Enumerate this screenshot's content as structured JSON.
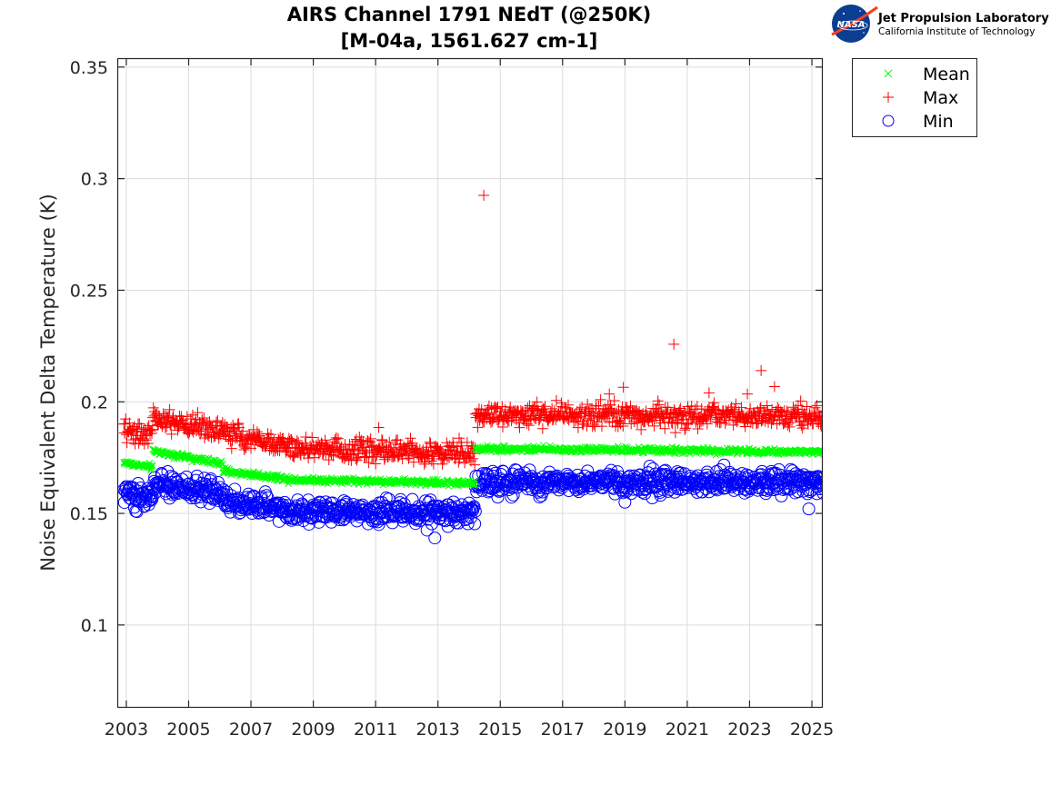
{
  "logo": {
    "org": "Jet Propulsion Laboratory",
    "sub": "California Institute of Technology",
    "badge": "NASA"
  },
  "chart_data": {
    "type": "scatter",
    "title": [
      "AIRS Channel 1791 NEdT (@250K)",
      "[M-04a, 1561.627 cm-1]"
    ],
    "xlabel": "",
    "ylabel": "Noise Equivalent Delta Temperature (K)",
    "xlim": [
      2002.71,
      2025.35
    ],
    "ylim": [
      0.0629,
      0.354
    ],
    "xticks": [
      2003,
      2005,
      2007,
      2009,
      2011,
      2013,
      2015,
      2017,
      2019,
      2021,
      2023,
      2025
    ],
    "xtick_labels": [
      "2003",
      "2005",
      "2007",
      "2009",
      "2011",
      "2013",
      "2015",
      "2017",
      "2019",
      "2021",
      "2023",
      "2025"
    ],
    "yticks": [
      0.1,
      0.15,
      0.2,
      0.25,
      0.3,
      0.35
    ],
    "ytick_labels": [
      "0.1",
      "0.15",
      "0.2",
      "0.25",
      "0.3",
      "0.35"
    ],
    "grid": true,
    "legend": {
      "placement": "outside-top-right",
      "entries": [
        {
          "label": "Mean",
          "marker": "x",
          "color": "#00ff00"
        },
        {
          "label": "Max",
          "marker": "+",
          "color": "#ff0000"
        },
        {
          "label": "Min",
          "marker": "o",
          "color": "#0000ff"
        }
      ]
    },
    "sampling_interval_years": 0.02,
    "series": [
      {
        "name": "Mean",
        "marker": "x",
        "color": "#00ff00",
        "spread": 0.0012,
        "segments": [
          {
            "x0": 2002.92,
            "x1": 2003.85,
            "y0": 0.1728,
            "y1": 0.1705
          },
          {
            "x0": 2003.85,
            "x1": 2006.1,
            "y0": 0.178,
            "y1": 0.1722
          },
          {
            "x0": 2006.1,
            "x1": 2008.2,
            "y0": 0.169,
            "y1": 0.1655
          },
          {
            "x0": 2008.2,
            "x1": 2014.2,
            "y0": 0.1652,
            "y1": 0.1635
          },
          {
            "x0": 2014.2,
            "x1": 2025.4,
            "y0": 0.179,
            "y1": 0.1775
          }
        ],
        "outliers": []
      },
      {
        "name": "Max",
        "marker": "+",
        "color": "#ff0000",
        "spread": 0.0045,
        "segments": [
          {
            "x0": 2002.92,
            "x1": 2003.85,
            "y0": 0.187,
            "y1": 0.1855
          },
          {
            "x0": 2003.85,
            "x1": 2006.1,
            "y0": 0.1925,
            "y1": 0.187
          },
          {
            "x0": 2006.1,
            "x1": 2008.2,
            "y0": 0.186,
            "y1": 0.18
          },
          {
            "x0": 2008.2,
            "x1": 2014.2,
            "y0": 0.1795,
            "y1": 0.177
          },
          {
            "x0": 2014.2,
            "x1": 2025.4,
            "y0": 0.1945,
            "y1": 0.193
          }
        ],
        "outliers": [
          {
            "x": 2011.1,
            "y": 0.1885
          },
          {
            "x": 2014.47,
            "y": 0.2925
          },
          {
            "x": 2018.5,
            "y": 0.2035
          },
          {
            "x": 2018.95,
            "y": 0.2065
          },
          {
            "x": 2020.57,
            "y": 0.2258
          },
          {
            "x": 2020.62,
            "y": 0.1862
          },
          {
            "x": 2021.7,
            "y": 0.204
          },
          {
            "x": 2022.93,
            "y": 0.2035
          },
          {
            "x": 2023.37,
            "y": 0.214
          },
          {
            "x": 2023.8,
            "y": 0.2068
          }
        ]
      },
      {
        "name": "Min",
        "marker": "o",
        "color": "#0000ff",
        "spread": 0.0045,
        "segments": [
          {
            "x0": 2002.92,
            "x1": 2003.85,
            "y0": 0.159,
            "y1": 0.157
          },
          {
            "x0": 2003.85,
            "x1": 2006.1,
            "y0": 0.163,
            "y1": 0.159
          },
          {
            "x0": 2006.1,
            "x1": 2008.2,
            "y0": 0.156,
            "y1": 0.152
          },
          {
            "x0": 2008.2,
            "x1": 2014.2,
            "y0": 0.1515,
            "y1": 0.15
          },
          {
            "x0": 2014.2,
            "x1": 2025.4,
            "y0": 0.164,
            "y1": 0.1635
          }
        ],
        "outliers": [
          {
            "x": 2012.9,
            "y": 0.139
          },
          {
            "x": 2012.65,
            "y": 0.1425
          },
          {
            "x": 2019.0,
            "y": 0.155
          },
          {
            "x": 2019.8,
            "y": 0.1712
          },
          {
            "x": 2024.9,
            "y": 0.152
          },
          {
            "x": 2003.3,
            "y": 0.151
          }
        ]
      }
    ]
  }
}
